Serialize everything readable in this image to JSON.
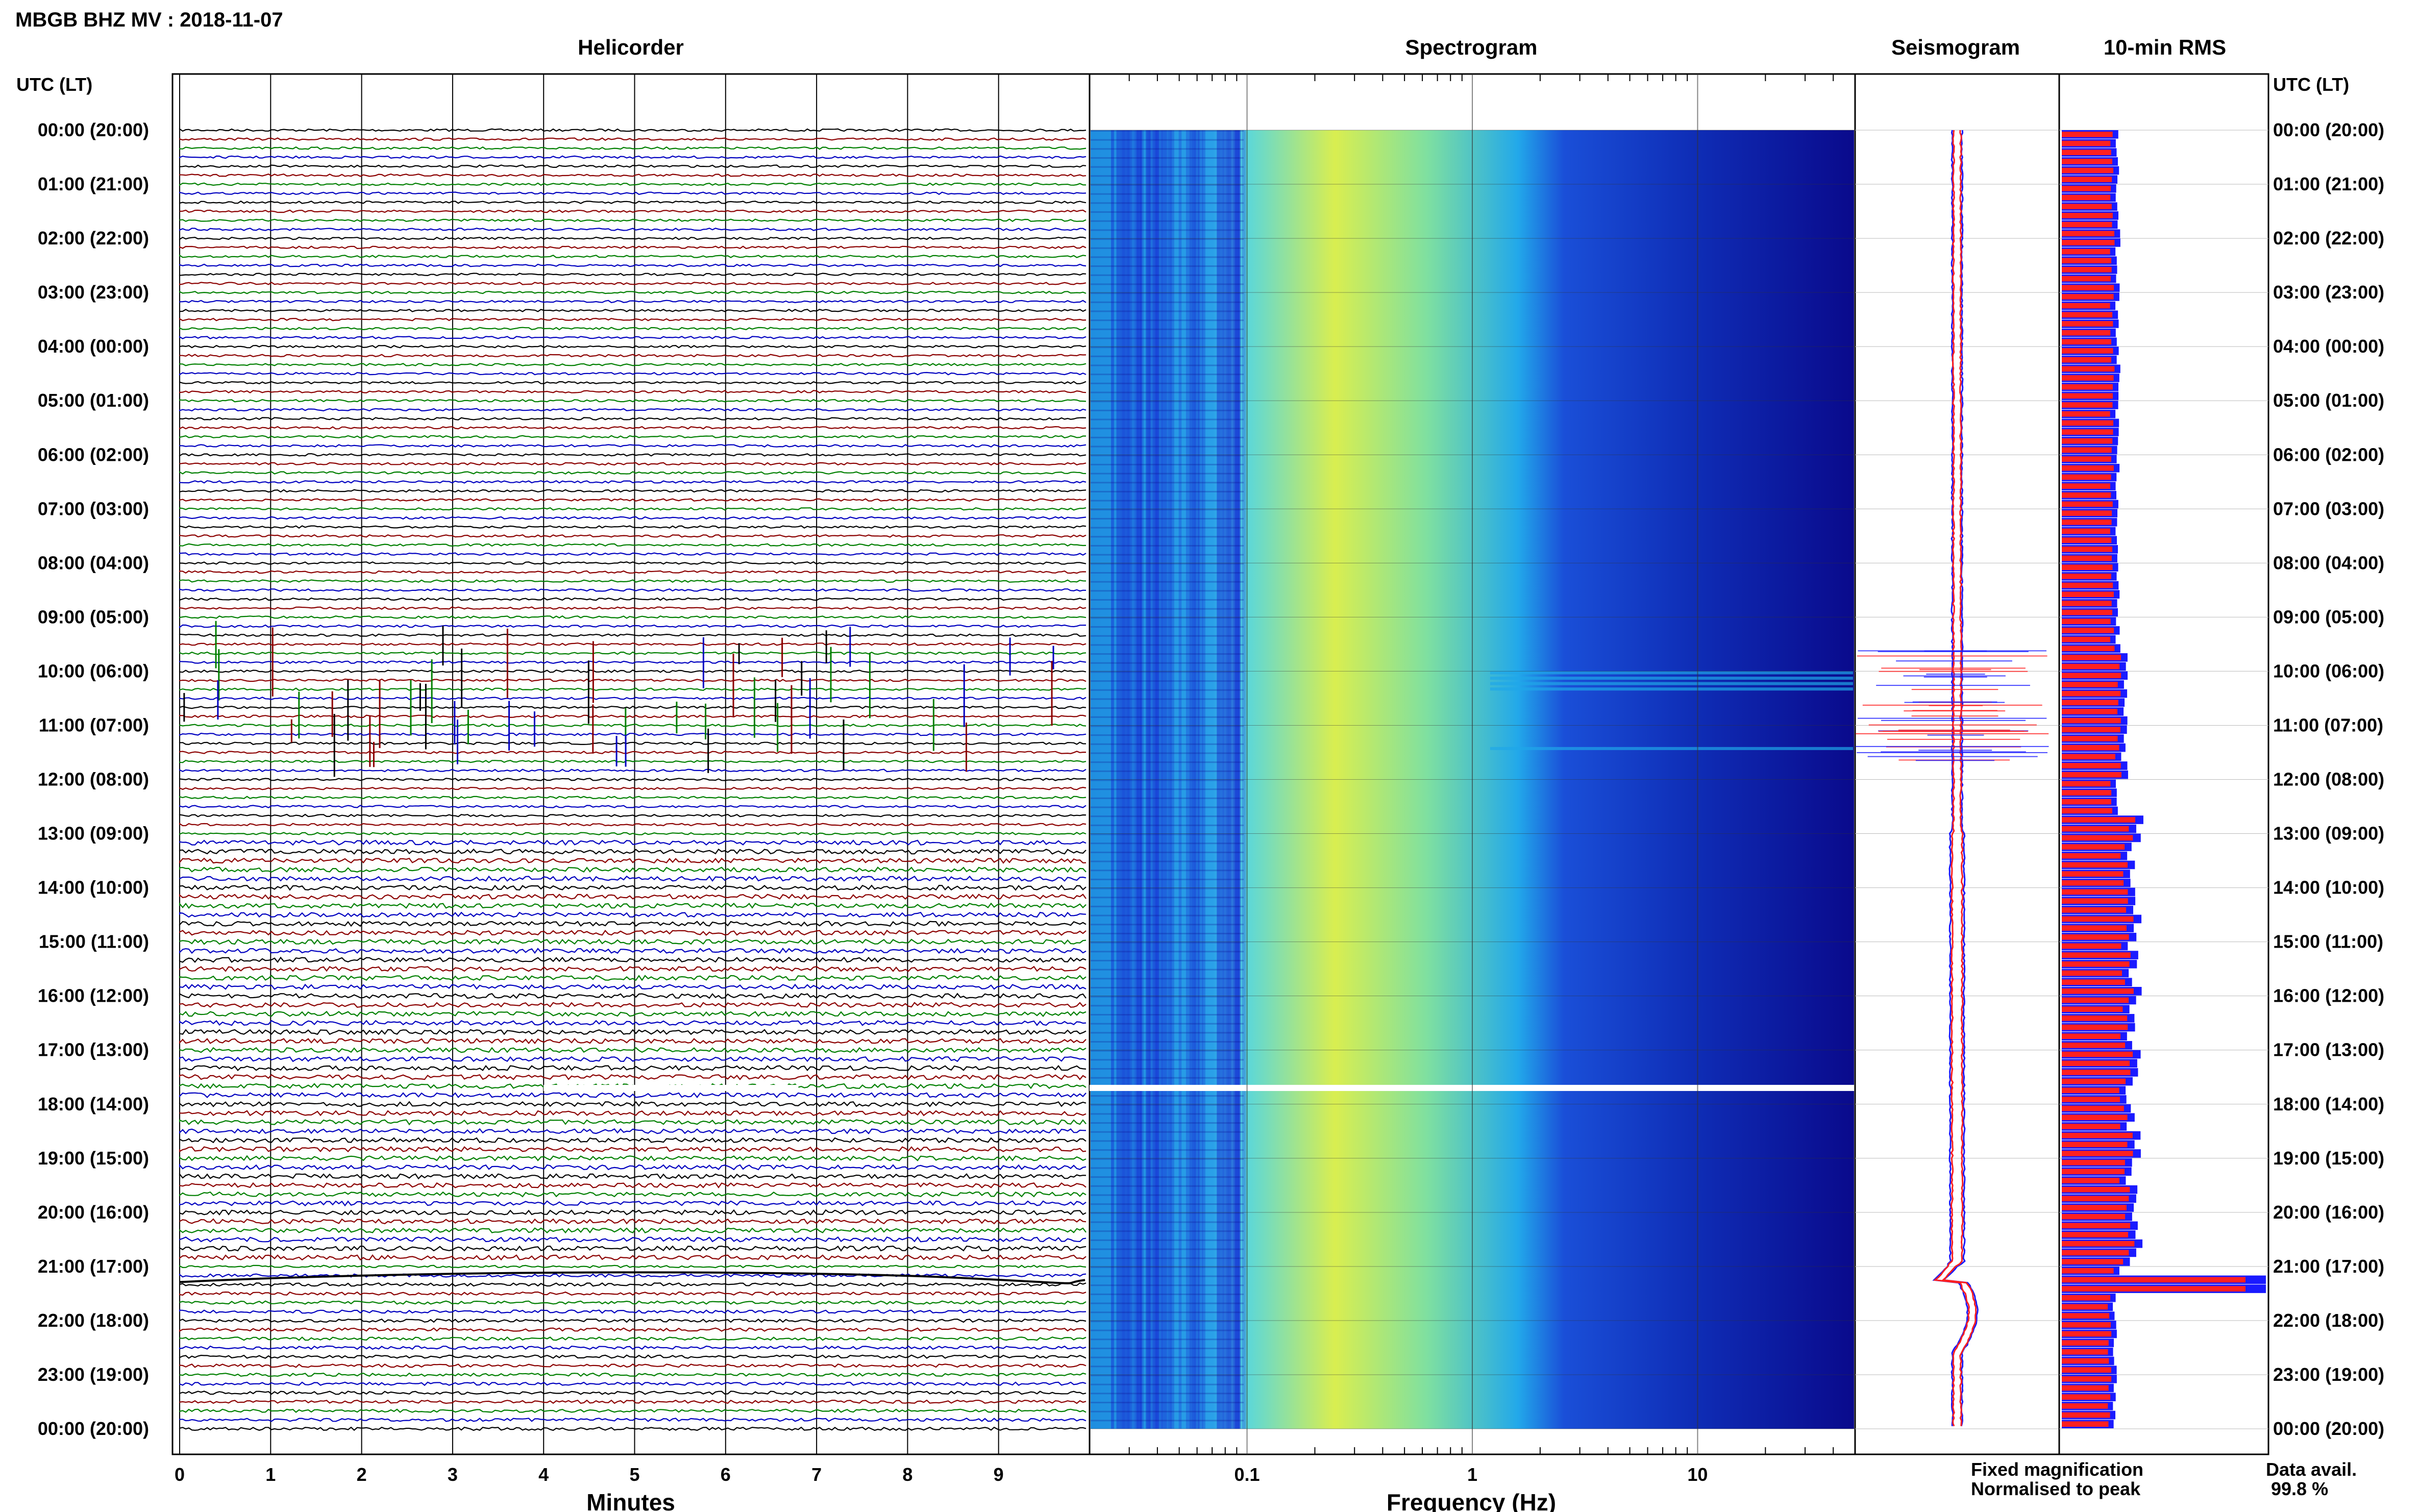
{
  "header": {
    "station_title": "MBGB BHZ MV : 2018-11-07",
    "timezone_label": "UTC (LT)"
  },
  "panels": {
    "helicorder": {
      "title": "Helicorder",
      "xlabel": "Minutes"
    },
    "spectrogram": {
      "title": "Spectrogram",
      "xlabel": "Frequency (Hz)"
    },
    "seismogram": {
      "title": "Seismogram"
    },
    "rms": {
      "title": "10-min RMS"
    }
  },
  "legend": {
    "fixed_label": "Fixed magnification",
    "normalised_label": "Normalised to peak",
    "fixed_color": "#1a1aff",
    "normalised_color": "#ff2020"
  },
  "availability": {
    "label": "Data avail.",
    "value": "99.8 %"
  },
  "chart_data": [
    {
      "type": "line",
      "name": "helicorder",
      "xlabel": "Minutes",
      "xlim": [
        0,
        10
      ],
      "x_ticks": [
        0,
        1,
        2,
        3,
        4,
        5,
        6,
        7,
        8,
        9
      ],
      "time_labels": [
        "00:00 (20:00)",
        "01:00 (21:00)",
        "02:00 (22:00)",
        "03:00 (23:00)",
        "04:00 (00:00)",
        "05:00 (01:00)",
        "06:00 (02:00)",
        "07:00 (03:00)",
        "08:00 (04:00)",
        "09:00 (05:00)",
        "10:00 (06:00)",
        "11:00 (07:00)",
        "12:00 (08:00)",
        "13:00 (09:00)",
        "14:00 (10:00)",
        "15:00 (11:00)",
        "16:00 (12:00)",
        "17:00 (13:00)",
        "18:00 (14:00)",
        "19:00 (15:00)",
        "20:00 (16:00)",
        "21:00 (17:00)",
        "22:00 (18:00)",
        "23:00 (19:00)",
        "00:00 (20:00)"
      ],
      "traces_per_hour": 6,
      "trace_colors": [
        "#000000",
        "#8b0000",
        "#007f00",
        "#0000c0"
      ],
      "data_gap_hours": [
        17.7,
        17.75
      ]
    },
    {
      "type": "heatmap",
      "name": "spectrogram",
      "xlabel": "Frequency (Hz)",
      "x_scale": "log",
      "xlim": [
        0.02,
        50
      ],
      "x_tick_labels": [
        "0.1",
        "1",
        "10"
      ],
      "x_tick_values": [
        0.1,
        1,
        10
      ],
      "colors": [
        "#0a0a8c",
        "#1a3fd6",
        "#1fa6e8",
        "#3fdcd0",
        "#e8f04a"
      ],
      "gap_hours": [
        17.7,
        17.75
      ]
    },
    {
      "type": "line",
      "name": "seismogram",
      "series": [
        {
          "name": "Fixed magnification",
          "color": "#1a1aff"
        },
        {
          "name": "Normalised to peak",
          "color": "#ff2020"
        }
      ],
      "spike_hours": [
        10.0,
        10.2,
        11.4
      ],
      "event_hour": 21.3
    },
    {
      "type": "bar",
      "name": "10-min RMS",
      "series": [
        {
          "name": "Fixed magnification",
          "color": "#1a1aff"
        },
        {
          "name": "Normalised to peak",
          "color": "#ff2020"
        }
      ],
      "bins": 144,
      "bin_minutes": 10,
      "peak_hour": 21.2
    }
  ]
}
